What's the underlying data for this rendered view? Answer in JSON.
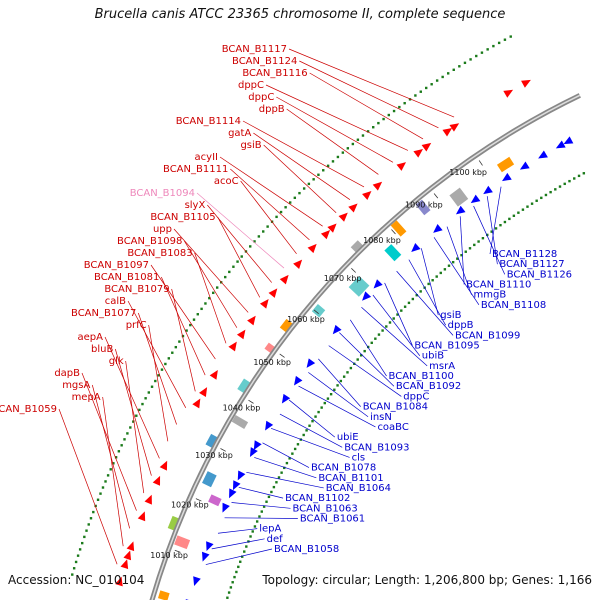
{
  "title": "Brucella canis ATCC 23365 chromosome II, complete sequence",
  "footer": {
    "accession": "Accession: NC_010104",
    "stats": "Topology: circular; Length: 1,206,800 bp; Genes: 1,166"
  },
  "ticks": [
    "1010 kbp",
    "1020 kbp",
    "1030 kbp",
    "1040 kbp",
    "1050 kbp",
    "1060 kbp",
    "1070 kbp",
    "1080 kbp",
    "1090 kbp",
    "1100 kbp"
  ],
  "labels_left": [
    "BCAN_B1117",
    "BCAN_B1124",
    "BCAN_B1116",
    "dppC",
    "dppC",
    "dppB",
    "BCAN_B1114",
    "gatA",
    "gsiB",
    "acyII",
    "BCAN_B1111",
    "acoC",
    "BCAN_B1094",
    "slyX",
    "BCAN_B1105",
    "upp",
    "BCAN_B1098",
    "BCAN_B1083",
    "BCAN_B1097",
    "BCAN_B1081",
    "BCAN_B1079",
    "calB",
    "BCAN_B1077",
    "prfC",
    "aepA",
    "bluB",
    "glk",
    "dapB",
    "mgsA",
    "mepA",
    "BCAN_B1059"
  ],
  "labels_right": [
    "BCAN_B1128",
    "BCAN_B1127",
    "BCAN_B1126",
    "BCAN_B1110",
    "mmgB",
    "BCAN_B1108",
    "gsiB",
    "dppB",
    "BCAN_B1099",
    "BCAN_B1095",
    "ubiB",
    "msrA",
    "BCAN_B1100",
    "BCAN_B1092",
    "dppC",
    "BCAN_B1084",
    "insN",
    "coaBC",
    "ubiE",
    "BCAN_B1093",
    "cls",
    "BCAN_B1078",
    "BCAN_B1101",
    "BCAN_B1064",
    "BCAN_B1102",
    "BCAN_B1063",
    "BCAN_B1061",
    "lepA",
    "def",
    "BCAN_B1058"
  ],
  "colors": {
    "forward": "#ff0000",
    "reverse": "#0000ff",
    "label_forward": "#cc0000",
    "label_pseudo": "#ee88bb",
    "label_reverse": "#0000cc",
    "backbone": "#888888",
    "gc_ring": "#1a7a1a"
  }
}
